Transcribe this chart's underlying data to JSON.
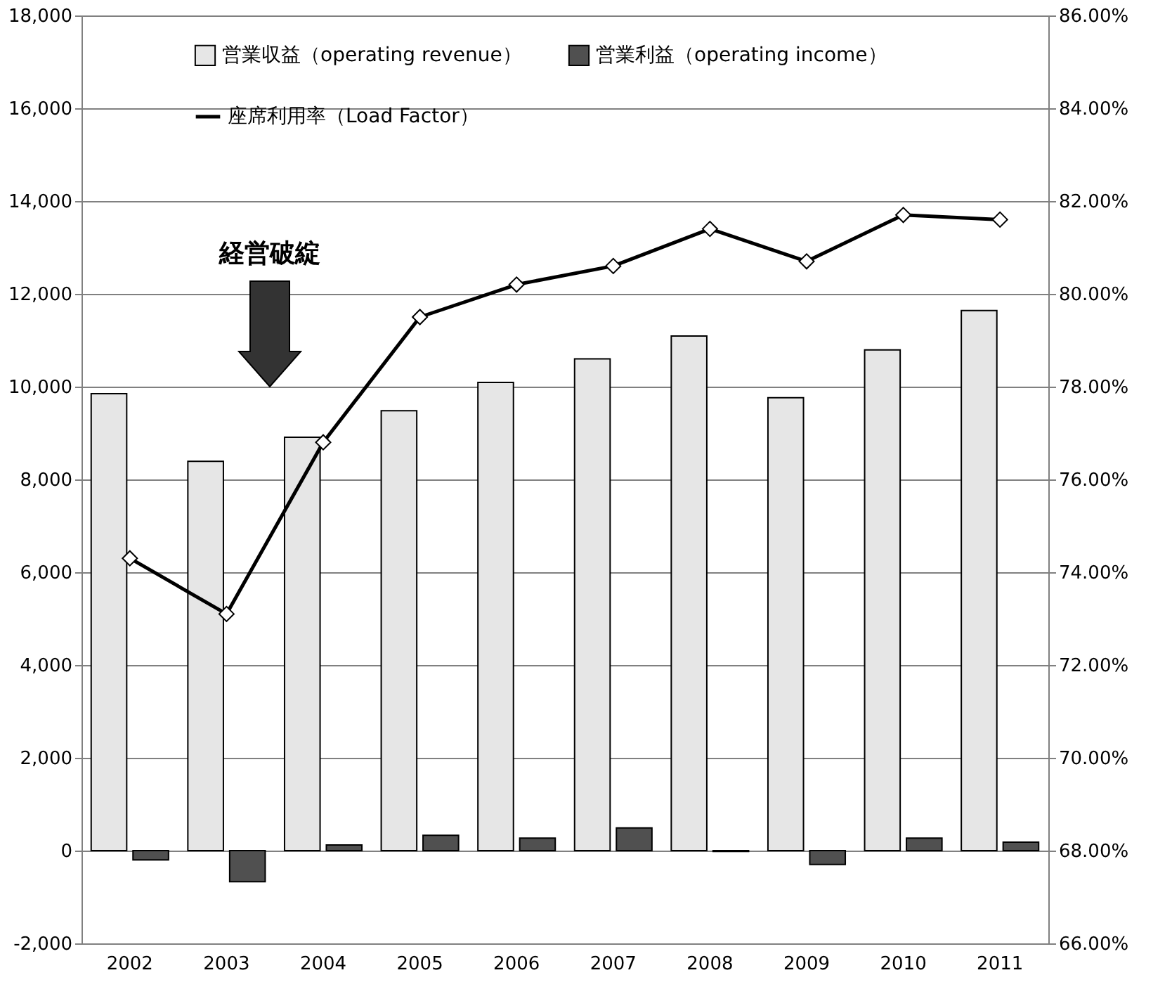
{
  "chart_data": {
    "type": "bar",
    "categories": [
      "2002",
      "2003",
      "2004",
      "2005",
      "2006",
      "2007",
      "2008",
      "2009",
      "2010",
      "2011"
    ],
    "series": [
      {
        "name": "営業収益（operating revenue）",
        "color": "#e6e6e6",
        "values": [
          9850,
          8390,
          8910,
          9480,
          10090,
          10600,
          11090,
          9760,
          10790,
          11640
        ]
      },
      {
        "name": "営業利益（operating income）",
        "color": "#505050",
        "values": [
          -200,
          -670,
          120,
          330,
          270,
          490,
          -20,
          -300,
          270,
          180
        ]
      },
      {
        "name": "座席利用率（Load Factor）",
        "type": "line",
        "axis": "y2",
        "color": "#000000",
        "marker": "diamond",
        "values": [
          74.3,
          73.1,
          76.8,
          79.5,
          80.2,
          80.6,
          81.4,
          80.7,
          81.7,
          81.6
        ]
      }
    ],
    "ylim": [
      -2000,
      18000
    ],
    "yticks": [
      {
        "value": -2000,
        "label": "-2,000"
      },
      0,
      {
        "value": 2000,
        "label": "2,000"
      },
      {
        "value": 4000,
        "label": "4,000"
      },
      {
        "value": 6000,
        "label": "6,000"
      },
      {
        "value": 8000,
        "label": "8,000"
      },
      {
        "value": 10000,
        "label": "10,000"
      },
      {
        "value": 12000,
        "label": "12,000"
      },
      {
        "value": 14000,
        "label": "14,000"
      },
      {
        "value": 16000,
        "label": "16,000"
      },
      {
        "value": 18000,
        "label": "18,000"
      }
    ],
    "y2lim": [
      66,
      86
    ],
    "y2ticks": [
      {
        "value": 66,
        "label": "66.00%"
      },
      {
        "value": 68,
        "label": "68.00%"
      },
      {
        "value": 70,
        "label": "70.00%"
      },
      {
        "value": 72,
        "label": "72.00%"
      },
      {
        "value": 74,
        "label": "74.00%"
      },
      {
        "value": 76,
        "label": "76.00%"
      },
      {
        "value": 78,
        "label": "78.00%"
      },
      {
        "value": 80,
        "label": "80.00%"
      },
      {
        "value": 82,
        "label": "82.00%"
      },
      {
        "value": 84,
        "label": "84.00%"
      },
      {
        "value": 86,
        "label": "86.00%"
      }
    ],
    "annotations": [
      "経営破綻"
    ],
    "grid": "y",
    "legend": "top"
  }
}
